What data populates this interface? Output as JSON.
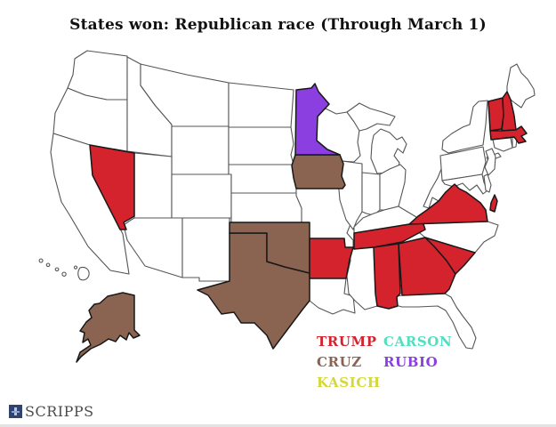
{
  "title": "States won: Republican race (Through March 1)",
  "legend": {
    "items": [
      {
        "label": "TRUMP",
        "color": "#d5232e"
      },
      {
        "label": "CARSON",
        "color": "#4fe0c0"
      },
      {
        "label": "CRUZ",
        "color": "#8a6450"
      },
      {
        "label": "RUBIO",
        "color": "#8b3fe0"
      },
      {
        "label": "KASICH",
        "color": "#d4d83a"
      }
    ]
  },
  "footer": {
    "brand": "SCRIPPS",
    "logo_icon": "scripps-lighthouse-icon"
  },
  "chart_data": {
    "type": "choropleth-map",
    "region": "United States",
    "subject": "Republican primary states won through March 1",
    "winners": {
      "TRUMP": [
        "NV",
        "NH",
        "VT",
        "MA",
        "VA",
        "TN",
        "AR",
        "AL",
        "GA",
        "SC"
      ],
      "CRUZ": [
        "TX",
        "OK",
        "IA",
        "AK"
      ],
      "RUBIO": [
        "MN"
      ],
      "CARSON": [],
      "KASICH": []
    },
    "colors": {
      "TRUMP": "#d5232e",
      "CRUZ": "#8a6450",
      "RUBIO": "#8b3fe0",
      "CARSON": "#4fe0c0",
      "KASICH": "#d4d83a",
      "no_wins": "#ffffff"
    },
    "outline_color": "#555555",
    "won_state_outline_color": "#181818"
  }
}
